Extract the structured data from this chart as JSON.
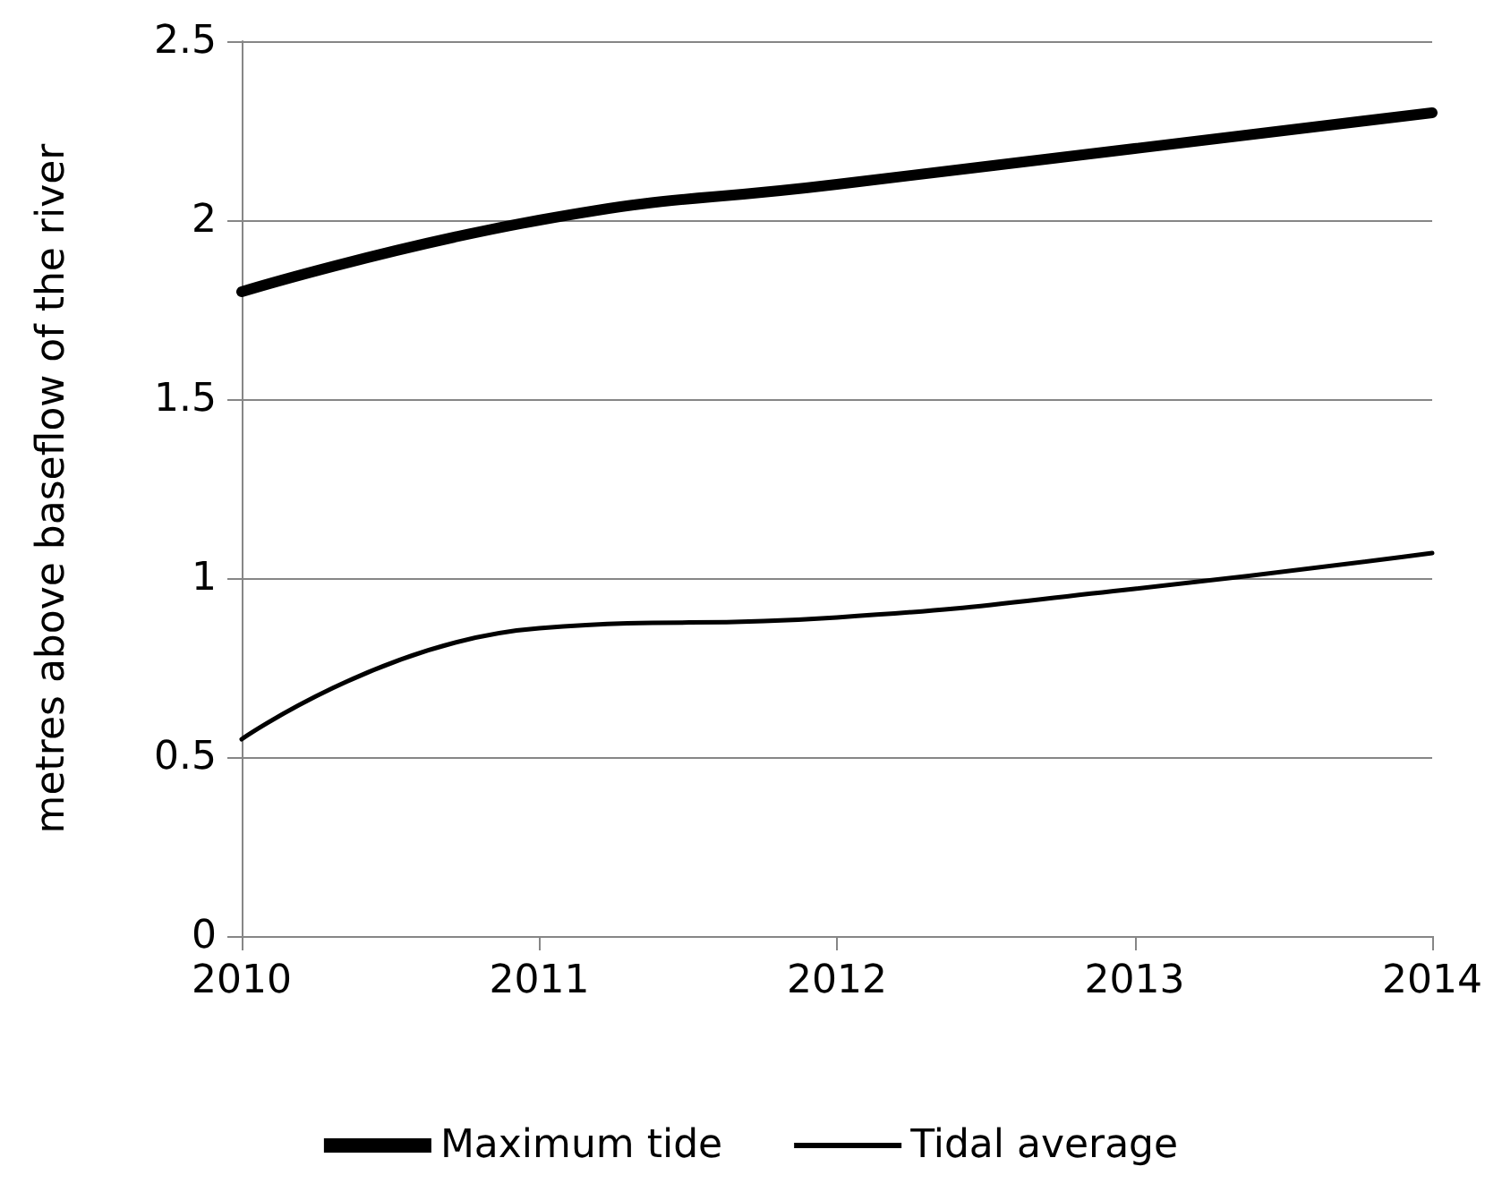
{
  "chart_data": {
    "type": "line",
    "ylabel": "metres above baseflow of the river",
    "x": [
      2010,
      2011,
      2012,
      2013,
      2014
    ],
    "series": [
      {
        "name": "Maximum tide",
        "color": "#000000",
        "values": [
          1.8,
          2.0,
          2.1,
          2.2,
          2.3
        ]
      },
      {
        "name": "Tidal average",
        "color": "#000000",
        "values": [
          0.55,
          0.86,
          0.89,
          0.97,
          1.07
        ]
      }
    ],
    "xlim": [
      2010,
      2014
    ],
    "xticks": [
      2010,
      2011,
      2012,
      2013,
      2014
    ],
    "ylim": [
      0,
      2.5
    ],
    "yticks": [
      0,
      0.5,
      1,
      1.5,
      2,
      2.5
    ],
    "grid": "y",
    "legend": "bottom",
    "marker": "none",
    "line_style": "solid"
  }
}
